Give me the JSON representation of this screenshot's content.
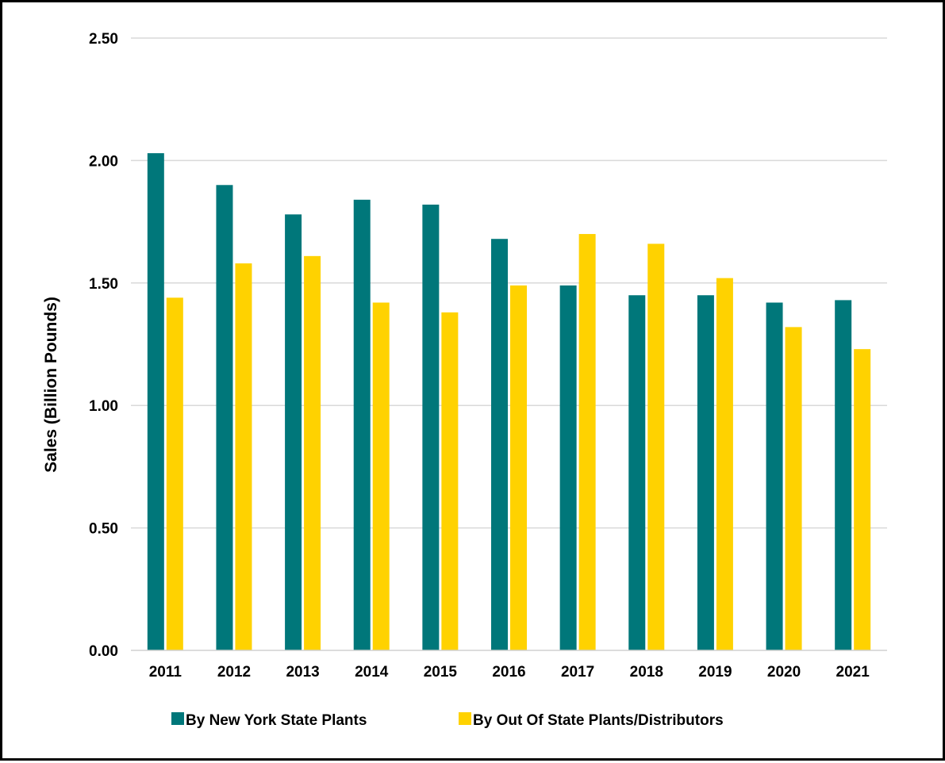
{
  "chart_data": {
    "type": "bar",
    "title": "",
    "xlabel": "",
    "ylabel": "Sales (Billion Pounds)",
    "ylim": [
      0,
      2.5
    ],
    "yticks": [
      "0.00",
      "0.50",
      "1.00",
      "1.50",
      "2.00",
      "2.50"
    ],
    "grid": true,
    "legend_position": "bottom",
    "categories": [
      "2011",
      "2012",
      "2013",
      "2014",
      "2015",
      "2016",
      "2017",
      "2018",
      "2019",
      "2020",
      "2021"
    ],
    "series": [
      {
        "name": "By New York State Plants",
        "color": "#00777A",
        "values": [
          2.03,
          1.9,
          1.78,
          1.84,
          1.82,
          1.68,
          1.49,
          1.45,
          1.45,
          1.42,
          1.43
        ]
      },
      {
        "name": "By Out Of State Plants/Distributors",
        "color": "#FFD200",
        "values": [
          1.44,
          1.58,
          1.61,
          1.42,
          1.38,
          1.49,
          1.7,
          1.66,
          1.52,
          1.32,
          1.23
        ]
      }
    ]
  }
}
